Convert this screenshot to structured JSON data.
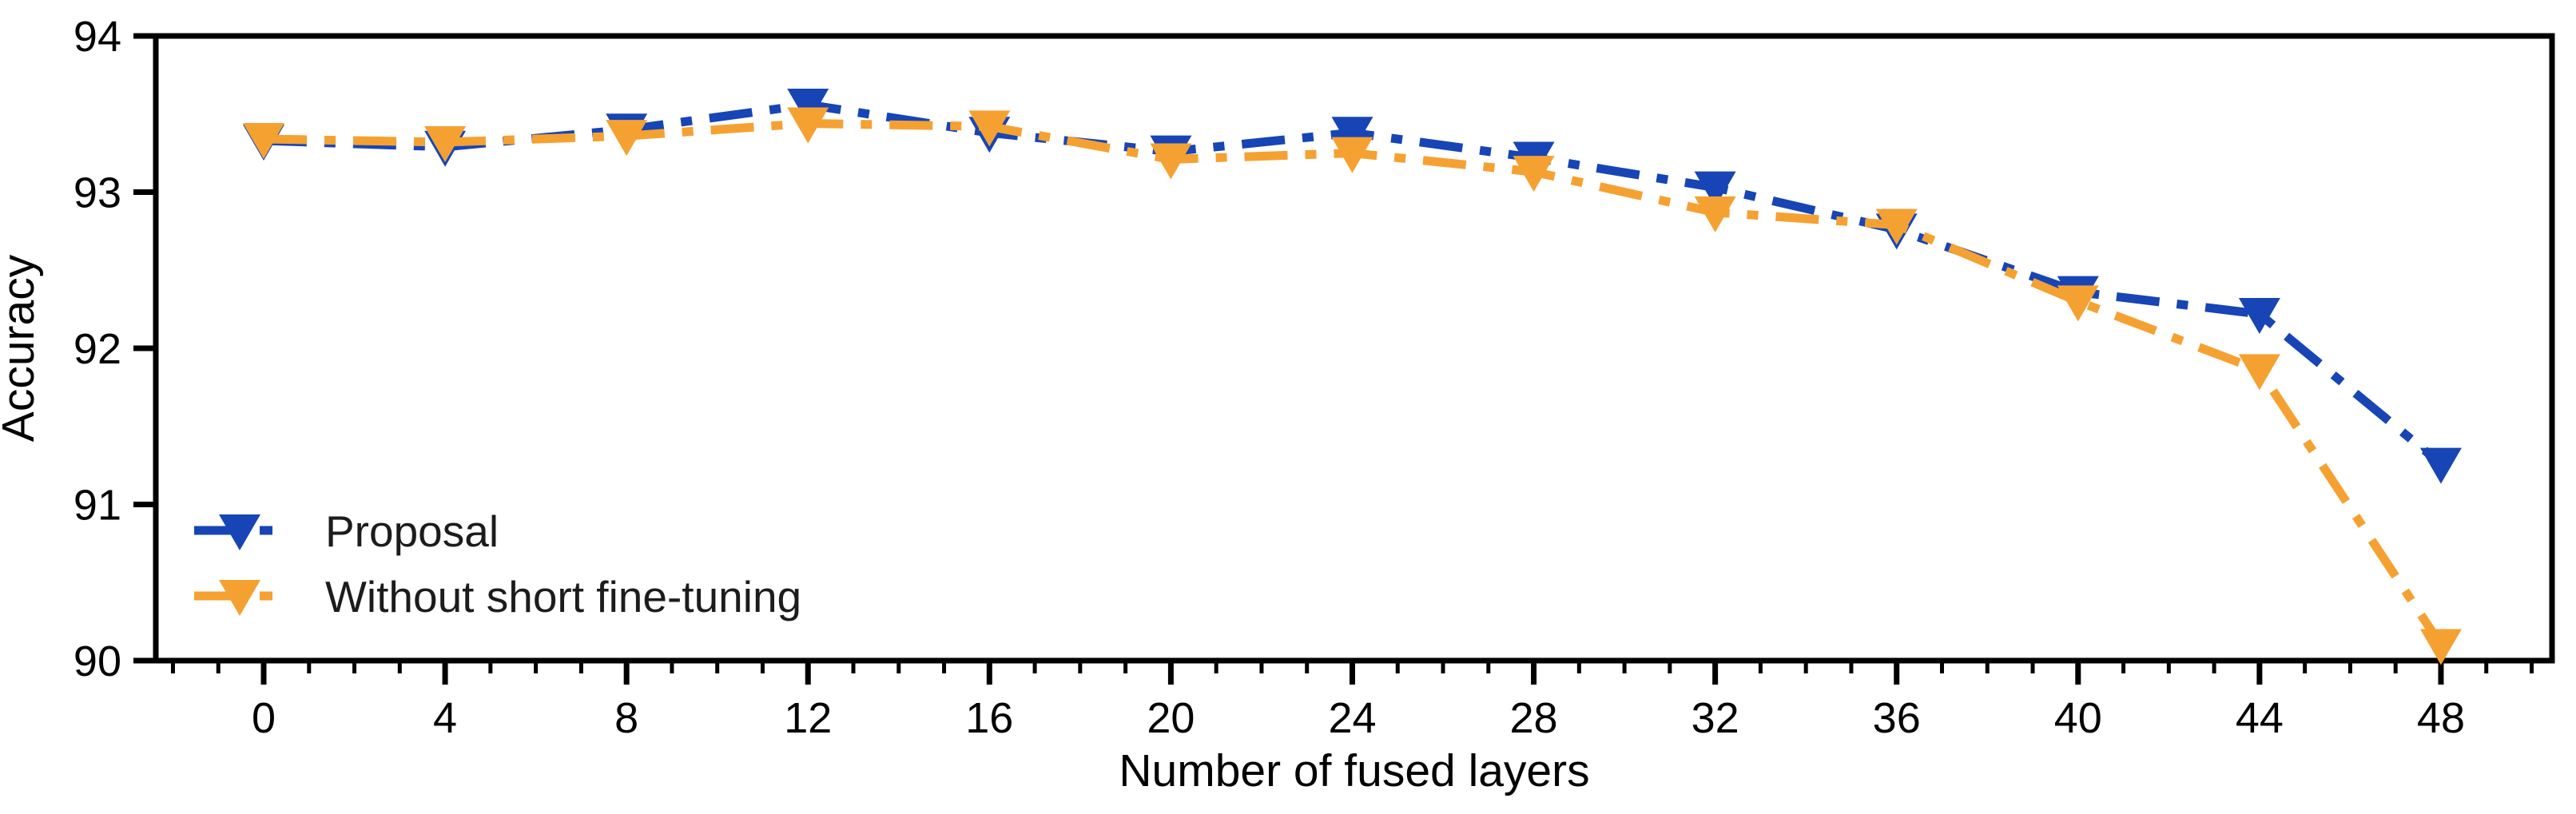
{
  "chart_data": {
    "type": "line",
    "title": "",
    "xlabel": "Number of fused layers",
    "ylabel": "Accuracy",
    "x": [
      0,
      4,
      8,
      12,
      16,
      20,
      24,
      28,
      32,
      36,
      40,
      44,
      48
    ],
    "series": [
      {
        "name": "Proposal",
        "color": "#1745b6",
        "marker": "triangle-down",
        "linestyle": "dash-dot",
        "values": [
          93.33,
          93.29,
          93.4,
          93.56,
          93.38,
          93.26,
          93.38,
          93.22,
          93.03,
          92.76,
          92.36,
          92.22,
          91.26
        ]
      },
      {
        "name": "Without short fine-tuning",
        "color": "#f5a132",
        "marker": "triangle-down",
        "linestyle": "dash-dot",
        "values": [
          93.34,
          93.32,
          93.36,
          93.44,
          93.42,
          93.21,
          93.25,
          93.13,
          92.87,
          92.79,
          92.3,
          91.86,
          90.1
        ]
      }
    ],
    "xlim": [
      -2.4,
      50.5
    ],
    "ylim": [
      90,
      94
    ],
    "xticks": [
      0,
      4,
      8,
      12,
      16,
      20,
      24,
      28,
      32,
      36,
      40,
      44,
      48
    ],
    "yticks": [
      90,
      91,
      92,
      93,
      94
    ],
    "minor_xticks_every": 1,
    "minor_xtick_range": [
      -2,
      50
    ],
    "grid": false,
    "legend_position": "lower-left",
    "axis_color": "#000000",
    "tick_label_color": "#000000",
    "legend_text_color": "#1c1c1c"
  }
}
